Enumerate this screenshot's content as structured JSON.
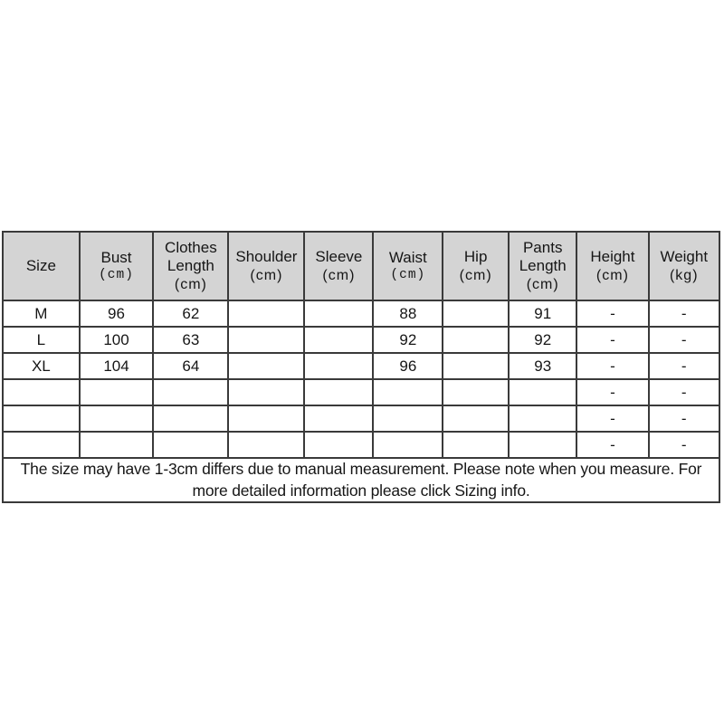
{
  "table": {
    "columns": [
      {
        "label": "Size",
        "unit": ""
      },
      {
        "label": "Bust",
        "unit": "(cm)"
      },
      {
        "label": "Clothes Length",
        "unit": "(cm)"
      },
      {
        "label": "Shoulder",
        "unit": "(cm)"
      },
      {
        "label": "Sleeve",
        "unit": "(cm)"
      },
      {
        "label": "Waist",
        "unit": "(cm)"
      },
      {
        "label": "Hip",
        "unit": "(cm)"
      },
      {
        "label": "Pants Length",
        "unit": "(cm)"
      },
      {
        "label": "Height",
        "unit": "(cm)"
      },
      {
        "label": "Weight",
        "unit": "(kg)"
      }
    ],
    "rows": [
      [
        "M",
        "96",
        "62",
        "",
        "",
        "88",
        "",
        "91",
        "-",
        "-"
      ],
      [
        "L",
        "100",
        "63",
        "",
        "",
        "92",
        "",
        "92",
        "-",
        "-"
      ],
      [
        "XL",
        "104",
        "64",
        "",
        "",
        "96",
        "",
        "93",
        "-",
        "-"
      ],
      [
        "",
        "",
        "",
        "",
        "",
        "",
        "",
        "",
        "-",
        "-"
      ],
      [
        "",
        "",
        "",
        "",
        "",
        "",
        "",
        "",
        "-",
        "-"
      ],
      [
        "",
        "",
        "",
        "",
        "",
        "",
        "",
        "",
        "-",
        "-"
      ]
    ],
    "note": "The size may have 1-3cm differs due to manual measurement. Please note when you measure. For more detailed information please click Sizing info.",
    "colors": {
      "header_background": "#d4d4d4",
      "border": "#3a3a3a",
      "text": "#161616",
      "page_background": "#ffffff"
    }
  }
}
